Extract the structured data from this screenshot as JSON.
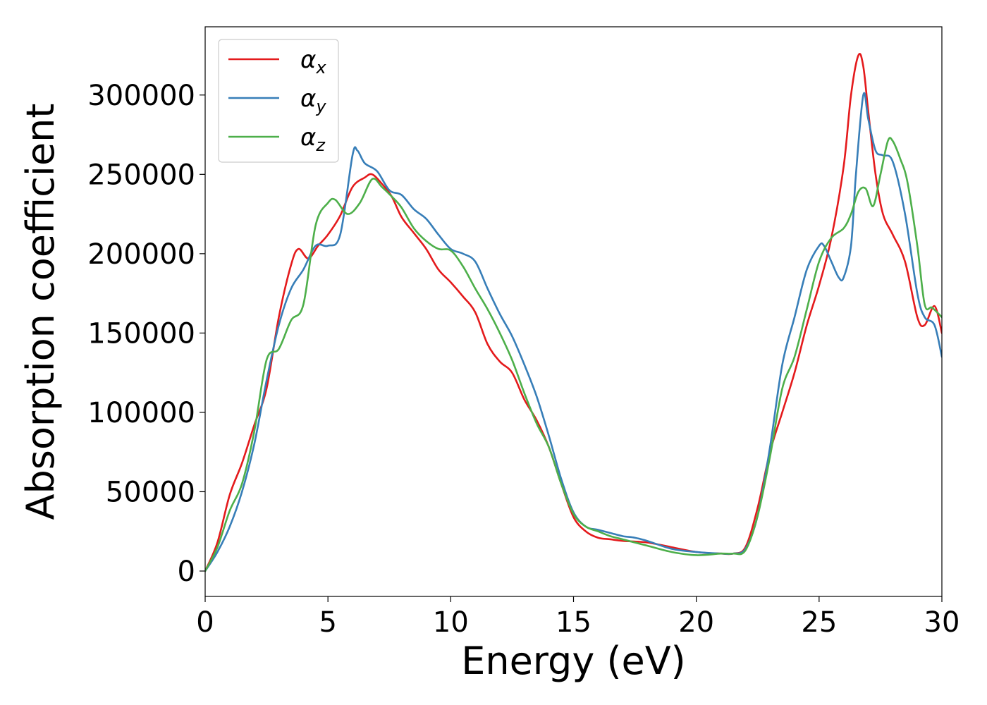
{
  "chart_data": {
    "type": "line",
    "title": "",
    "xlabel": "Energy (eV)",
    "ylabel": "Absorption coefficient",
    "xlim": [
      0,
      30
    ],
    "ylim": [
      -16000,
      343000
    ],
    "xticks": [
      0,
      5,
      10,
      15,
      20,
      25,
      30
    ],
    "yticks": [
      0,
      50000,
      100000,
      150000,
      200000,
      250000,
      300000
    ],
    "grid": false,
    "legend_position": "top-left",
    "series": [
      {
        "name": "α",
        "sub": "x",
        "color": "#e41a1c",
        "x": [
          0,
          0.5,
          1,
          1.5,
          2,
          2.5,
          3,
          3.5,
          3.8,
          4.2,
          4.6,
          5,
          5.5,
          6,
          6.5,
          6.8,
          7.2,
          7.6,
          8,
          8.5,
          9,
          9.5,
          10,
          10.5,
          11,
          11.5,
          12,
          12.5,
          13,
          13.5,
          14,
          14.5,
          15,
          15.5,
          16,
          16.5,
          17,
          18,
          19,
          20,
          21,
          21.5,
          22,
          22.5,
          23,
          23.5,
          24,
          24.5,
          25,
          25.5,
          26,
          26.3,
          26.6,
          26.8,
          27,
          27.3,
          27.6,
          28,
          28.5,
          29,
          29.3,
          29.7,
          30
        ],
        "y": [
          0,
          18000,
          48000,
          68000,
          92000,
          115000,
          160000,
          193000,
          203000,
          197000,
          205000,
          212000,
          224000,
          242000,
          248000,
          250000,
          244000,
          236000,
          223000,
          213000,
          203000,
          190000,
          182000,
          173000,
          163000,
          143000,
          132000,
          125000,
          108000,
          95000,
          78000,
          55000,
          34000,
          25000,
          21000,
          20000,
          19000,
          18000,
          15000,
          12000,
          11000,
          11000,
          15000,
          40000,
          75000,
          100000,
          125000,
          155000,
          180000,
          210000,
          255000,
          300000,
          325000,
          318000,
          290000,
          250000,
          225000,
          212000,
          195000,
          160000,
          155000,
          167000,
          150000
        ]
      },
      {
        "name": "α",
        "sub": "y",
        "color": "#377eb8",
        "x": [
          0,
          0.5,
          1,
          1.5,
          2,
          2.5,
          3,
          3.5,
          4,
          4.5,
          5,
          5.5,
          6,
          6.2,
          6.5,
          7,
          7.5,
          8,
          8.5,
          9,
          9.5,
          10,
          10.5,
          11,
          11.5,
          12,
          12.5,
          13,
          13.5,
          14,
          14.5,
          15,
          15.5,
          16,
          16.5,
          17,
          17.5,
          18,
          19,
          20,
          21,
          21.5,
          22,
          22.5,
          23,
          23.5,
          24,
          24.5,
          25,
          25.2,
          25.5,
          25.8,
          26,
          26.3,
          26.5,
          26.8,
          27,
          27.3,
          27.6,
          28,
          28.5,
          29,
          29.3,
          29.7,
          30
        ],
        "y": [
          0,
          12000,
          28000,
          50000,
          80000,
          120000,
          155000,
          178000,
          190000,
          205000,
          205000,
          212000,
          262000,
          265000,
          257000,
          252000,
          240000,
          237000,
          228000,
          222000,
          212000,
          203000,
          200000,
          195000,
          178000,
          162000,
          148000,
          130000,
          110000,
          85000,
          58000,
          37000,
          28000,
          26000,
          24000,
          22000,
          21000,
          19000,
          14000,
          12000,
          11000,
          11000,
          14000,
          35000,
          78000,
          130000,
          160000,
          190000,
          205000,
          205000,
          195000,
          185000,
          185000,
          205000,
          250000,
          300000,
          285000,
          265000,
          262000,
          258000,
          225000,
          175000,
          160000,
          155000,
          135000
        ]
      },
      {
        "name": "α",
        "sub": "z",
        "color": "#4daf4a",
        "x": [
          0,
          0.5,
          1,
          1.5,
          2,
          2.5,
          3,
          3.5,
          4,
          4.5,
          5,
          5.3,
          5.8,
          6.3,
          6.8,
          7.2,
          7.6,
          8,
          8.5,
          9,
          9.5,
          10,
          10.5,
          11,
          11.5,
          12,
          12.5,
          13,
          13.5,
          14,
          14.5,
          15,
          15.5,
          16,
          16.5,
          17,
          18,
          19,
          20,
          21,
          21.5,
          22,
          22.5,
          23,
          23.5,
          24,
          24.5,
          25,
          25.5,
          26,
          26.3,
          26.6,
          26.9,
          27.2,
          27.5,
          27.8,
          28,
          28.3,
          28.6,
          29,
          29.3,
          29.6,
          30
        ],
        "y": [
          0,
          15000,
          38000,
          55000,
          88000,
          133000,
          140000,
          158000,
          168000,
          218000,
          232000,
          234000,
          225000,
          232000,
          247000,
          242000,
          236000,
          229000,
          216000,
          208000,
          203000,
          202000,
          192000,
          178000,
          165000,
          150000,
          133000,
          112000,
          93000,
          78000,
          55000,
          36000,
          28000,
          25000,
          22000,
          20000,
          16000,
          12000,
          10000,
          11000,
          11000,
          13000,
          35000,
          72000,
          115000,
          135000,
          165000,
          195000,
          210000,
          216000,
          225000,
          239000,
          241000,
          230000,
          250000,
          271000,
          271000,
          260000,
          245000,
          205000,
          168000,
          166000,
          160000
        ]
      }
    ]
  }
}
